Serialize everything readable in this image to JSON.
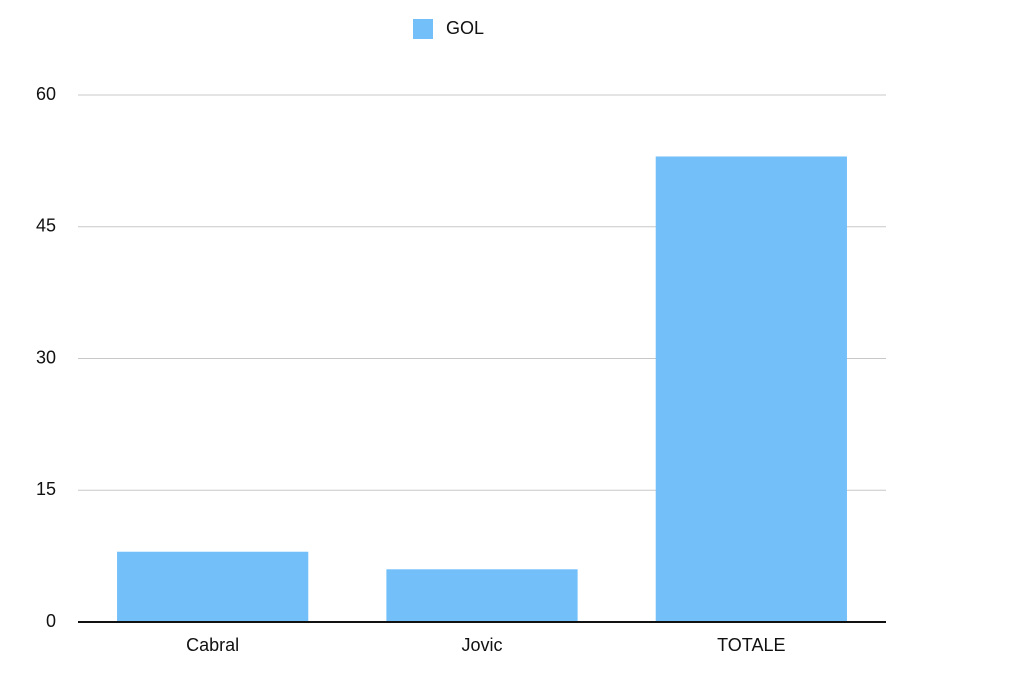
{
  "chart_data": {
    "type": "bar",
    "categories": [
      "Cabral",
      "Jovic",
      "TOTALE"
    ],
    "series": [
      {
        "name": "GOL",
        "color": "#72bff9",
        "values": [
          8,
          6,
          53
        ]
      }
    ],
    "ylim": [
      0,
      60
    ],
    "yticks": [
      0,
      15,
      30,
      45,
      60
    ],
    "grid": true,
    "legend": "top"
  }
}
